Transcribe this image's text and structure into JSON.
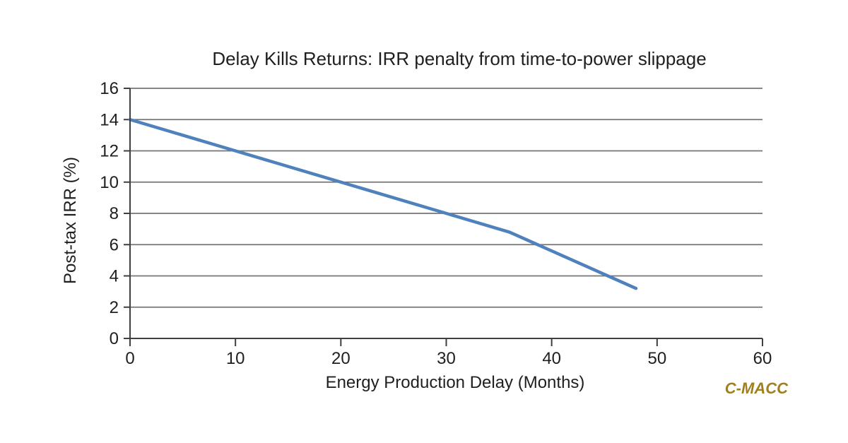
{
  "chart": {
    "watermark": "C-MACC"
  },
  "chart_data": {
    "type": "line",
    "title": "Delay Kills Returns: IRR penalty from time-to-power slippage",
    "xlabel": "Energy Production Delay (Months)",
    "ylabel": "Post-tax IRR (%)",
    "xlim": [
      0,
      60
    ],
    "ylim": [
      0,
      16
    ],
    "xticks": [
      0,
      10,
      20,
      30,
      40,
      50,
      60
    ],
    "yticks": [
      0,
      2,
      4,
      6,
      8,
      10,
      12,
      14,
      16
    ],
    "grid": "horizontal-only",
    "legend": "none",
    "series": [
      {
        "name": "Post-tax IRR (%)",
        "color": "#4F81BD",
        "points": [
          [
            0,
            14
          ],
          [
            10,
            12
          ],
          [
            20,
            10
          ],
          [
            30,
            8
          ],
          [
            36,
            6.8
          ],
          [
            48,
            3.2
          ]
        ]
      }
    ]
  },
  "colors": {
    "line": "#4F81BD",
    "gridline": "#757575",
    "axis": "#3f3f3f",
    "tick_text": "#1f1f1f",
    "watermark": "#A0801E",
    "background": "#ffffff"
  }
}
